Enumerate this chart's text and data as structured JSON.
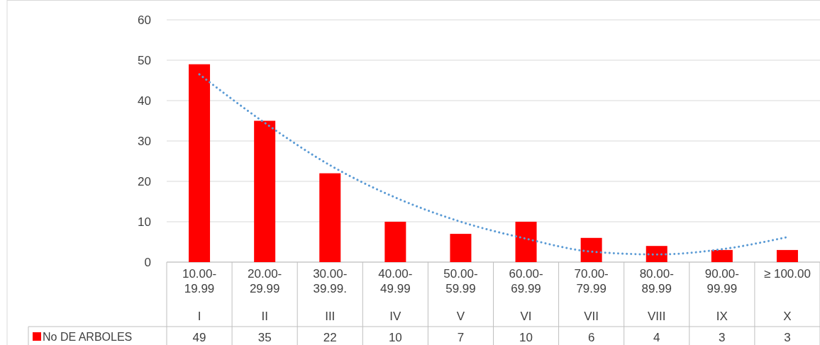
{
  "chart_data": {
    "type": "bar",
    "categories": [
      "10.00-\n19.99\nI",
      "20.00-\n29.99\nII",
      "30.00-\n39.99.\nIII",
      "40.00-\n49.99\nIV",
      "50.00-\n59.99\nV",
      "60.00-\n69.99\nVI",
      "70.00-\n79.99\nVII",
      "80.00-\n89.99\nVIII",
      "90.00-\n99.99\nIX",
      "≥ 100.00\nX"
    ],
    "series": [
      {
        "name": "No DE ARBOLES",
        "color": "#ff0000",
        "values": [
          49,
          35,
          22,
          10,
          7,
          10,
          6,
          4,
          3,
          3
        ],
        "value_labels": [
          "49",
          "35",
          "22",
          "10",
          "7",
          "10",
          "6",
          "4",
          "3",
          "3"
        ]
      },
      {
        "type": "line",
        "color": "#5b9bd5",
        "line_style": "dotted",
        "marker": "none",
        "values": [
          46.5,
          34.5,
          24,
          16,
          10,
          5.8,
          2.6,
          1.9,
          3.2,
          6.2
        ]
      }
    ],
    "ylim": [
      0,
      60
    ],
    "yticks": [
      0,
      10,
      20,
      30,
      40,
      50,
      60
    ],
    "grid": "y",
    "legend": "bottom"
  }
}
